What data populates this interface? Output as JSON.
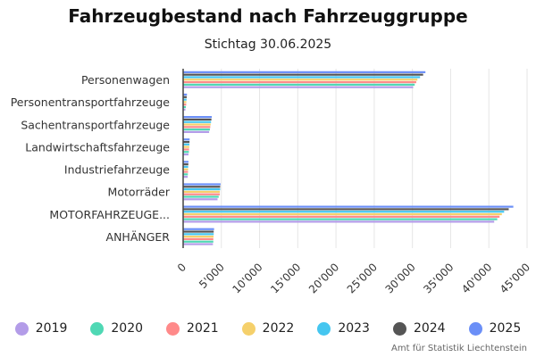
{
  "chart_data": {
    "type": "bar",
    "orientation": "horizontal",
    "title": "Fahrzeugbestand nach Fahrzeuggruppe",
    "subtitle": "Stichtag 30.06.2025",
    "xlabel": "",
    "ylabel": "",
    "xlim": [
      0,
      45000
    ],
    "xticks": [
      0,
      5000,
      10000,
      15000,
      20000,
      25000,
      30000,
      35000,
      40000,
      45000
    ],
    "xtick_labels": [
      "0",
      "5'000",
      "10'000",
      "15'000",
      "20'000",
      "25'000",
      "30'000",
      "35'000",
      "40'000",
      "45'000"
    ],
    "grid": true,
    "legend_position": "bottom",
    "categories": [
      "Personenwagen",
      "Personentransportfahrzeuge",
      "Sachentransportfahrzeuge",
      "Landwirtschaftsfahrzeuge",
      "Industriefahrzeuge",
      "Motorräder",
      "MOTORFAHRZEUGE...",
      "ANHÄNGER"
    ],
    "series": [
      {
        "name": "2019",
        "color": "#b39ce8",
        "values": [
          30100,
          300,
          3400,
          700,
          600,
          4500,
          40700,
          3900
        ]
      },
      {
        "name": "2020",
        "color": "#4fd8b4",
        "values": [
          30300,
          350,
          3500,
          750,
          620,
          4650,
          41100,
          3950
        ]
      },
      {
        "name": "2021",
        "color": "#ff8a8a",
        "values": [
          30500,
          400,
          3550,
          780,
          640,
          4800,
          41400,
          3950
        ]
      },
      {
        "name": "2022",
        "color": "#f5d06b",
        "values": [
          30650,
          420,
          3600,
          800,
          650,
          4800,
          41700,
          3980
        ]
      },
      {
        "name": "2023",
        "color": "#45c6f0",
        "values": [
          31000,
          450,
          3650,
          820,
          660,
          4850,
          42000,
          4000
        ]
      },
      {
        "name": "2024",
        "color": "#555555",
        "values": [
          31400,
          470,
          3700,
          830,
          680,
          4850,
          42600,
          4000
        ]
      },
      {
        "name": "2025",
        "color": "#6b8ff7",
        "values": [
          31700,
          500,
          3750,
          850,
          700,
          4900,
          43200,
          4050
        ]
      }
    ]
  },
  "footer": {
    "credit": "Amt für Statistik Liechtenstein"
  }
}
